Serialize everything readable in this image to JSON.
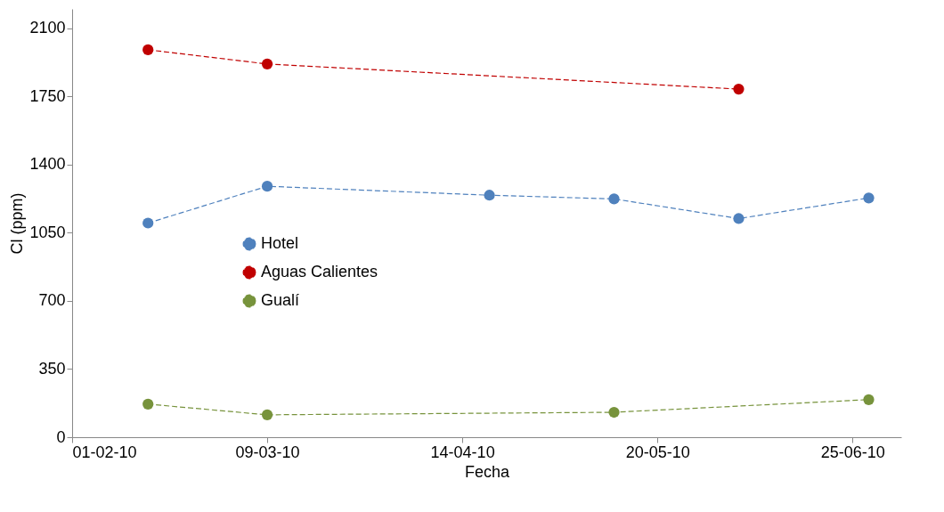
{
  "chart_data": {
    "type": "line",
    "xlabel": "Fecha",
    "ylabel": "Cl (ppm)",
    "xlim": [
      "2010-02-01",
      "2010-07-04"
    ],
    "xticks": [
      {
        "value": "2010-02-01",
        "label": "01-02-10"
      },
      {
        "value": "2010-03-09",
        "label": "09-03-10"
      },
      {
        "value": "2010-04-14",
        "label": "14-04-10"
      },
      {
        "value": "2010-05-20",
        "label": "20-05-10"
      },
      {
        "value": "2010-06-25",
        "label": "25-06-10"
      }
    ],
    "ylim": [
      0,
      2200
    ],
    "yticks": [
      0,
      350,
      700,
      1050,
      1400,
      1750,
      2100
    ],
    "grid": false,
    "legend": "left",
    "marker": "circle",
    "series": [
      {
        "name": "Hotel",
        "color": "#4f81bd",
        "line_style": "dashed",
        "x": [
          "2010-02-15",
          "2010-03-09",
          "2010-04-19",
          "2010-05-12",
          "2010-06-04",
          "2010-06-28"
        ],
        "values": [
          1100,
          1289,
          1243,
          1224,
          1123,
          1229
        ]
      },
      {
        "name": "Aguas Calientes",
        "color": "#c00000",
        "line_style": "dashed",
        "x": [
          "2010-02-15",
          "2010-03-09",
          "2010-06-04"
        ],
        "values": [
          1990,
          1917,
          1788
        ]
      },
      {
        "name": "Gualí",
        "color": "#77933c",
        "line_style": "dashed",
        "x": [
          "2010-02-15",
          "2010-03-09",
          "2010-05-12",
          "2010-06-28"
        ],
        "values": [
          170,
          115,
          128,
          193
        ]
      }
    ]
  }
}
